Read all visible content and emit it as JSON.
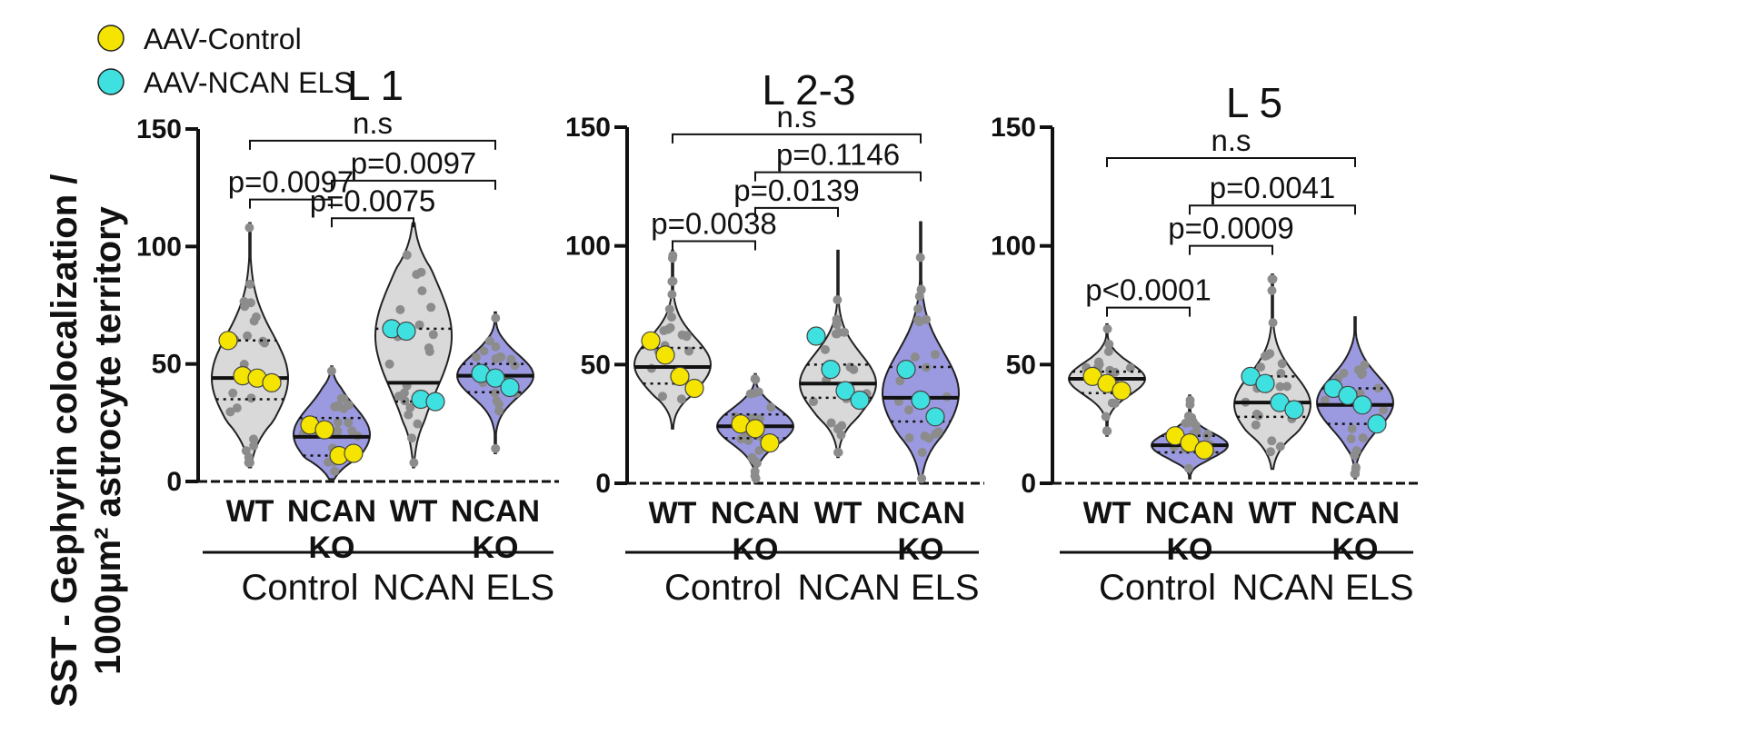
{
  "legend": [
    {
      "label": "AAV-Control",
      "color": "#f5e400"
    },
    {
      "label": "AAV-NCAN ELS",
      "color": "#3ee0e0"
    }
  ],
  "ylabel_line1": "SST - Gephyrin colocalization /",
  "ylabel_line2": "1000μm² astrocyte territory",
  "colors": {
    "wt": "#d9d9d9",
    "ko": "#9b9ae0",
    "dot": "#8c8c8c",
    "axis": "#111111"
  },
  "chart_data": [
    {
      "type": "violin",
      "title": "L 1",
      "ylim": [
        0,
        150
      ],
      "yticks": [
        0,
        50,
        100,
        150
      ],
      "categories": [
        {
          "line1": "WT",
          "line2": "",
          "group": "Control",
          "fill": "wt",
          "range": [
            6,
            110
          ],
          "median": 44,
          "q1": 35,
          "q3": 60,
          "mode": 44,
          "animal": "yellow",
          "animal_values": [
            60,
            45,
            44,
            42
          ]
        },
        {
          "line1": "NCAN",
          "line2": "KO",
          "group": "Control",
          "fill": "ko",
          "range": [
            1,
            49
          ],
          "median": 19,
          "q1": 11,
          "q3": 27,
          "mode": 20,
          "animal": "yellow",
          "animal_values": [
            24,
            22,
            11,
            12
          ]
        },
        {
          "line1": "WT",
          "line2": "",
          "group": "NCAN ELS",
          "fill": "wt",
          "range": [
            6,
            110
          ],
          "median": 42,
          "q1": 34,
          "q3": 65,
          "mode": 62,
          "animal": "cyan",
          "animal_values": [
            65,
            64,
            35,
            34
          ]
        },
        {
          "line1": "NCAN",
          "line2": "KO",
          "group": "NCAN ELS",
          "fill": "ko",
          "range": [
            12,
            72
          ],
          "median": 45,
          "q1": 38,
          "q3": 50,
          "mode": 45,
          "animal": "cyan",
          "animal_values": [
            46,
            44,
            40
          ]
        }
      ],
      "groups": [
        "Control",
        "NCAN ELS"
      ],
      "comparisons": [
        {
          "from": 0,
          "to": 3,
          "y": 145,
          "label": "n.s"
        },
        {
          "from": 1,
          "to": 3,
          "y": 128,
          "label": "p=0.0097"
        },
        {
          "from": 0,
          "to": 1,
          "y": 120,
          "label": "p=0.0097"
        },
        {
          "from": 1,
          "to": 2,
          "y": 112,
          "label": "p=0.0075"
        }
      ]
    },
    {
      "type": "violin",
      "title": "L 2-3",
      "ylim": [
        0,
        150
      ],
      "yticks": [
        0,
        50,
        100,
        150
      ],
      "categories": [
        {
          "line1": "WT",
          "line2": "",
          "group": "Control",
          "fill": "wt",
          "range": [
            23,
            98
          ],
          "median": 49,
          "q1": 42,
          "q3": 57,
          "mode": 50,
          "animal": "yellow",
          "animal_values": [
            60,
            54,
            45,
            40
          ]
        },
        {
          "line1": "NCAN",
          "line2": "KO",
          "group": "Control",
          "fill": "ko",
          "range": [
            0,
            46
          ],
          "median": 24,
          "q1": 19,
          "q3": 29,
          "mode": 24,
          "animal": "yellow",
          "animal_values": [
            25,
            23,
            17
          ]
        },
        {
          "line1": "WT",
          "line2": "",
          "group": "NCAN ELS",
          "fill": "wt",
          "range": [
            11,
            98
          ],
          "median": 42,
          "q1": 36,
          "q3": 50,
          "mode": 42,
          "animal": "cyan",
          "animal_values": [
            62,
            48,
            39,
            35
          ]
        },
        {
          "line1": "NCAN",
          "line2": "KO",
          "group": "NCAN ELS",
          "fill": "ko",
          "range": [
            0,
            110
          ],
          "median": 36,
          "q1": 26,
          "q3": 49,
          "mode": 38,
          "animal": "cyan",
          "animal_values": [
            48,
            35,
            28
          ]
        }
      ],
      "groups": [
        "Control",
        "NCAN ELS"
      ],
      "comparisons": [
        {
          "from": 0,
          "to": 3,
          "y": 147,
          "label": "n.s"
        },
        {
          "from": 1,
          "to": 3,
          "y": 131,
          "label": "p=0.1146"
        },
        {
          "from": 1,
          "to": 2,
          "y": 116,
          "label": "p=0.0139"
        },
        {
          "from": 0,
          "to": 1,
          "y": 102,
          "label": "p=0.0038"
        }
      ]
    },
    {
      "type": "violin",
      "title": "L 5",
      "ylim": [
        0,
        150
      ],
      "yticks": [
        0,
        50,
        100,
        150
      ],
      "categories": [
        {
          "line1": "WT",
          "line2": "",
          "group": "Control",
          "fill": "wt",
          "range": [
            20,
            67
          ],
          "median": 44,
          "q1": 38,
          "q3": 47,
          "mode": 44,
          "animal": "yellow",
          "animal_values": [
            45,
            42,
            39
          ]
        },
        {
          "line1": "NCAN",
          "line2": "KO",
          "group": "Control",
          "fill": "ko",
          "range": [
            2,
            37
          ],
          "median": 16,
          "q1": 13,
          "q3": 20,
          "mode": 16,
          "animal": "yellow",
          "animal_values": [
            20,
            17,
            14
          ]
        },
        {
          "line1": "WT",
          "line2": "",
          "group": "NCAN ELS",
          "fill": "wt",
          "range": [
            6,
            88
          ],
          "median": 34,
          "q1": 28,
          "q3": 45,
          "mode": 33,
          "animal": "cyan",
          "animal_values": [
            45,
            42,
            34,
            31
          ]
        },
        {
          "line1": "NCAN",
          "line2": "KO",
          "group": "NCAN ELS",
          "fill": "ko",
          "range": [
            2,
            70
          ],
          "median": 33,
          "q1": 25,
          "q3": 40,
          "mode": 34,
          "animal": "cyan",
          "animal_values": [
            40,
            37,
            33,
            25
          ]
        }
      ],
      "groups": [
        "Control",
        "NCAN ELS"
      ],
      "comparisons": [
        {
          "from": 0,
          "to": 3,
          "y": 137,
          "label": "n.s"
        },
        {
          "from": 1,
          "to": 3,
          "y": 117,
          "label": "p=0.0041"
        },
        {
          "from": 1,
          "to": 2,
          "y": 100,
          "label": "p=0.0009"
        },
        {
          "from": 0,
          "to": 1,
          "y": 74,
          "label": "p<0.0001"
        }
      ]
    }
  ]
}
